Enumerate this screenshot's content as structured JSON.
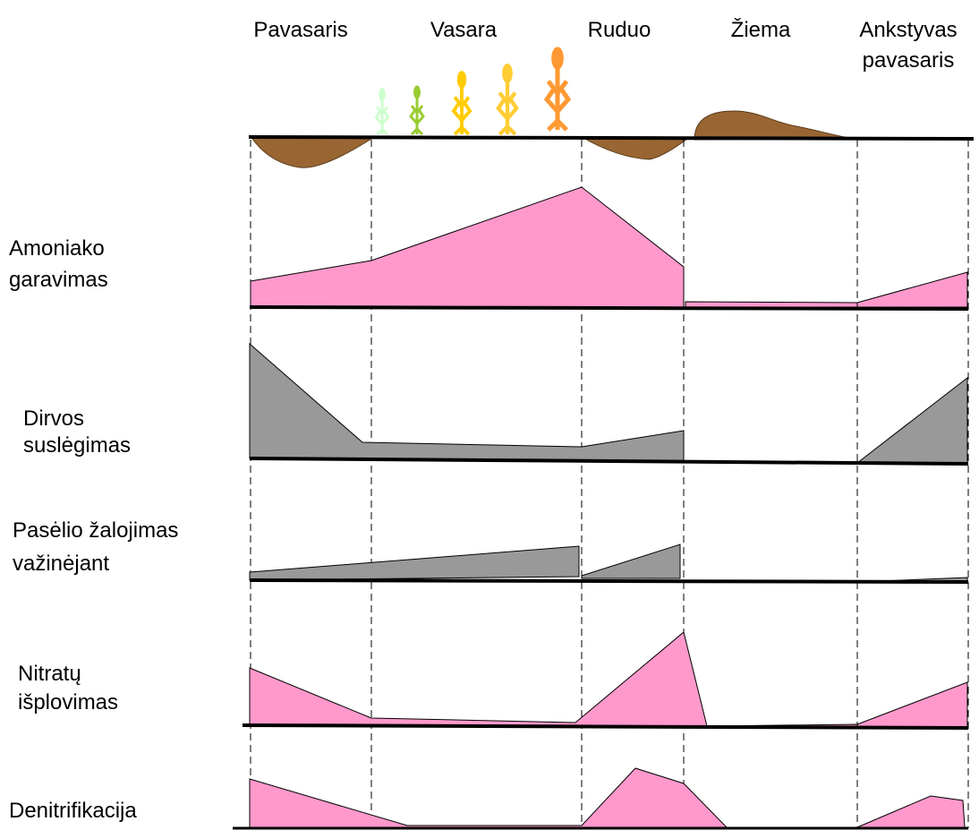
{
  "seasons": [
    {
      "lines": [
        "Pavasaris"
      ]
    },
    {
      "lines": [
        "Vasara"
      ]
    },
    {
      "lines": [
        "Ruduo"
      ]
    },
    {
      "lines": [
        "Žiema"
      ]
    },
    {
      "lines": [
        "Ankstyvas",
        "pavasaris"
      ]
    }
  ],
  "rows": [
    {
      "lines": [
        "Amoniako",
        "garavimas"
      ],
      "color": "#ff99cc"
    },
    {
      "lines": [
        "Dirvos",
        "suslėgimas"
      ],
      "color": "#999999"
    },
    {
      "lines": [
        "Pasėlio žalojimas",
        "važinėjant"
      ],
      "color": "#999999"
    },
    {
      "lines": [
        "Nitratų",
        "išplovimas"
      ],
      "color": "#ff99cc"
    },
    {
      "lines": [
        "Denitrifikacija"
      ],
      "color": "#ff99cc"
    }
  ],
  "colors": {
    "soil": "#996633",
    "pink": "#ff99cc",
    "gray": "#999999",
    "plant_stages": [
      "#ccffcc",
      "#99cc33",
      "#ffcc00",
      "#ffcc33",
      "#ff9933"
    ]
  },
  "icons": [
    "crop-plant-icon",
    "soil-mound-icon"
  ]
}
